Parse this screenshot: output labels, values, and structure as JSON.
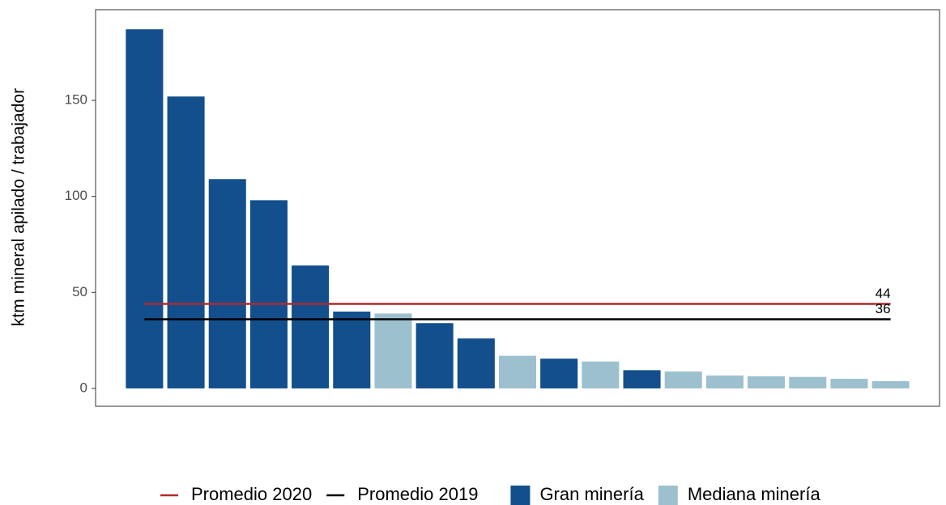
{
  "chart_data": {
    "type": "bar",
    "y_label": "ktm mineral apilado / trabajador",
    "categories": [
      null,
      null,
      null,
      null,
      null,
      null,
      null,
      null,
      null,
      null,
      null,
      null,
      null,
      null,
      null,
      null,
      null,
      null,
      null
    ],
    "series": [
      {
        "name": "Gran minería",
        "color": "#124f8c",
        "values": [
          187,
          152,
          109,
          98,
          64,
          40,
          null,
          34,
          26,
          null,
          15.5,
          null,
          9.5,
          null,
          null,
          null,
          null,
          null,
          null
        ]
      },
      {
        "name": "Mediana minería",
        "color": "#9dc0cf",
        "values": [
          null,
          null,
          null,
          null,
          null,
          null,
          39,
          null,
          null,
          17,
          null,
          14,
          null,
          8.8,
          6.7,
          6.3,
          6,
          5,
          3.8
        ]
      }
    ],
    "reference_lines": [
      {
        "name": "Promedio 2020",
        "color": "#b2292e",
        "value": 44
      },
      {
        "name": "Promedio 2019",
        "color": "#000000",
        "value": 36
      }
    ],
    "ylim": [
      -9.3,
      197.2
    ],
    "yticks": [
      0,
      50,
      100,
      150
    ],
    "grid": false
  }
}
